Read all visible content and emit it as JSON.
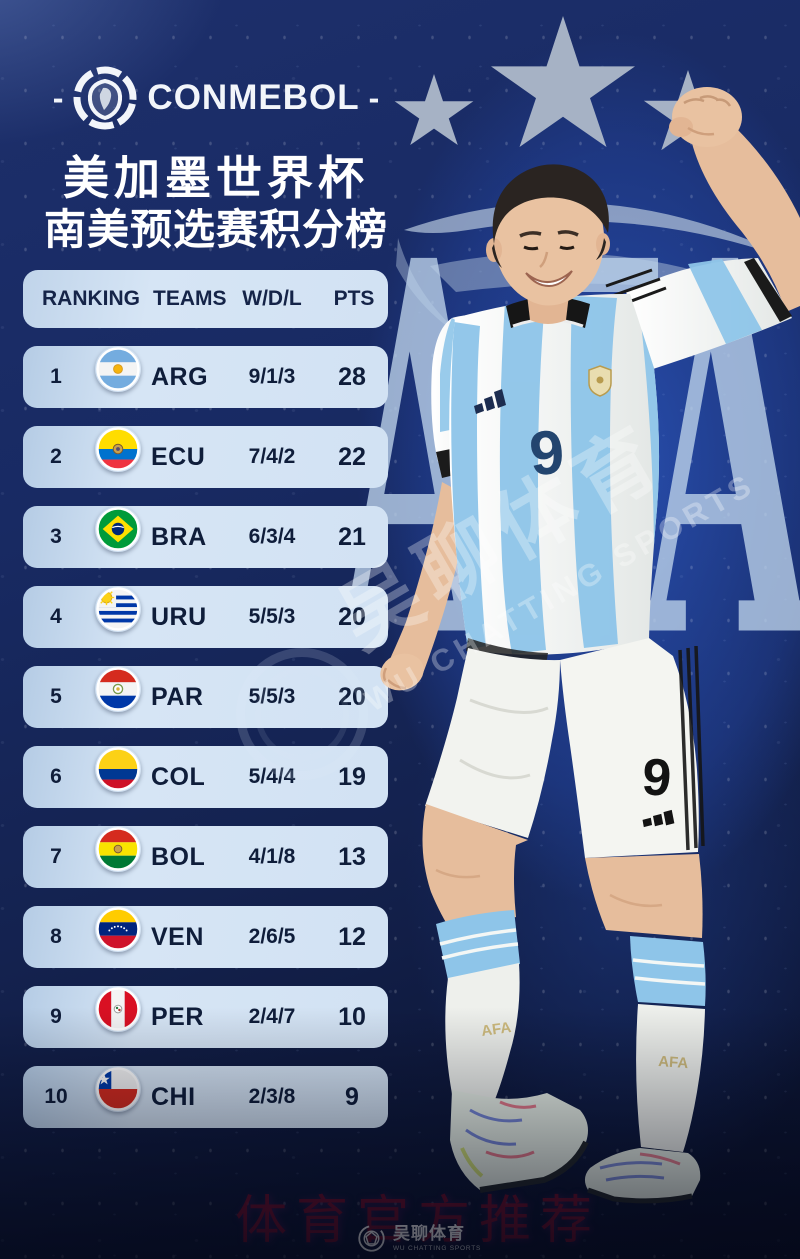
{
  "header": {
    "dash_left": "-",
    "brand": "CONMEBOL",
    "dash_right": "-",
    "title_line1": "美加墨世界杯",
    "title_line2": "南美预选赛积分榜"
  },
  "chart_data": {
    "type": "table",
    "title": "美加墨世界杯 南美预选赛积分榜",
    "columns": [
      "RANKING",
      "TEAMS",
      "W/D/L",
      "PTS"
    ],
    "rows": [
      {
        "ranking": "1",
        "team": "ARG",
        "flag": "arg",
        "flag_name": "argentina-flag",
        "wdl": "9/1/3",
        "pts": "28"
      },
      {
        "ranking": "2",
        "team": "ECU",
        "flag": "ecu",
        "flag_name": "ecuador-flag",
        "wdl": "7/4/2",
        "pts": "22"
      },
      {
        "ranking": "3",
        "team": "BRA",
        "flag": "bra",
        "flag_name": "brazil-flag",
        "wdl": "6/3/4",
        "pts": "21"
      },
      {
        "ranking": "4",
        "team": "URU",
        "flag": "uru",
        "flag_name": "uruguay-flag",
        "wdl": "5/5/3",
        "pts": "20"
      },
      {
        "ranking": "5",
        "team": "PAR",
        "flag": "par",
        "flag_name": "paraguay-flag",
        "wdl": "5/5/3",
        "pts": "20"
      },
      {
        "ranking": "6",
        "team": "COL",
        "flag": "col",
        "flag_name": "colombia-flag",
        "wdl": "5/4/4",
        "pts": "19"
      },
      {
        "ranking": "7",
        "team": "BOL",
        "flag": "bol",
        "flag_name": "bolivia-flag",
        "wdl": "4/1/8",
        "pts": "13"
      },
      {
        "ranking": "8",
        "team": "VEN",
        "flag": "ven",
        "flag_name": "venezuela-flag",
        "wdl": "2/6/5",
        "pts": "12"
      },
      {
        "ranking": "9",
        "team": "PER",
        "flag": "per",
        "flag_name": "peru-flag",
        "wdl": "2/4/7",
        "pts": "10"
      },
      {
        "ranking": "10",
        "team": "CHI",
        "flag": "chi",
        "flag_name": "chile-flag",
        "wdl": "2/3/8",
        "pts": "9"
      }
    ]
  },
  "player": {
    "jersey_number": "9",
    "shorts_number": "9",
    "sock_text": "AFA"
  },
  "background": {
    "afa_watermark": "AFA"
  },
  "watermarks": {
    "diagonal_cn": "吴聊体育",
    "diagonal_en": "WU CHATTING SPORTS",
    "promo_text": "体育官方推荐",
    "footer_cn": "吴聊体育",
    "footer_en": "WU CHATTING SPORTS"
  },
  "colors": {
    "bg_navy": "#16255b",
    "royal_glow": "#2247a5",
    "row_blue": "#cfe0f2",
    "text_navy": "#0f1d3a",
    "star_gray": "#a6b2c5",
    "jersey_sky": "#8ec5e9",
    "promo_red": "#7d0e28"
  }
}
